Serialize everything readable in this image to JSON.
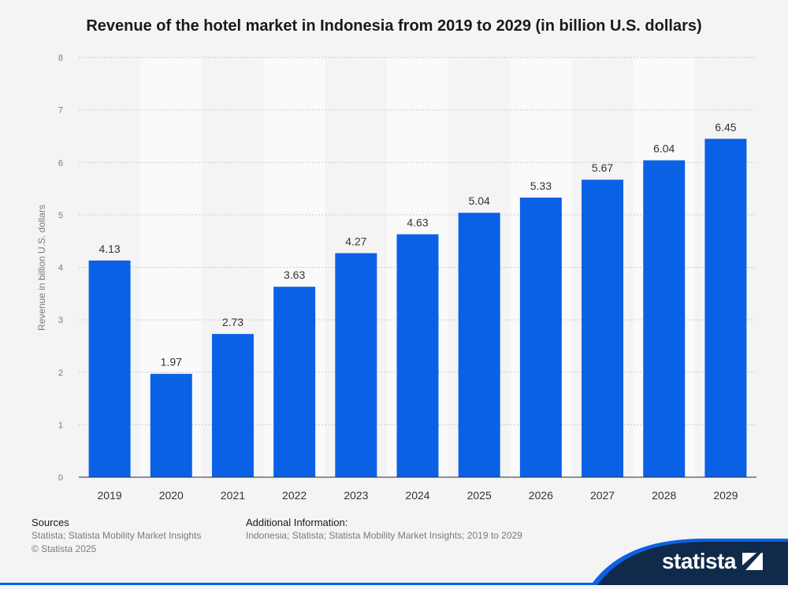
{
  "title": "Revenue of the hotel market in Indonesia from 2019 to 2029 (in billion U.S. dollars)",
  "footer": {
    "sources_heading": "Sources",
    "sources_line1": "Statista; Statista Mobility Market Insights",
    "sources_line2": "© Statista 2025",
    "additional_heading": "Additional Information:",
    "additional_line1": "Indonesia; Statista; Statista Mobility Market Insights; 2019 to 2029"
  },
  "brand": {
    "logo_text": "statista"
  },
  "colors": {
    "bar": "#0b61e6",
    "background": "#f4f4f4",
    "band": "#fafafa",
    "brand_dark": "#0f2a4a"
  },
  "chart_data": {
    "type": "bar",
    "title": "Revenue of the hotel market in Indonesia from 2019 to 2029 (in billion U.S. dollars)",
    "xlabel": "",
    "ylabel": "Revenue in billion U.S. dollars",
    "categories": [
      "2019",
      "2020",
      "2021",
      "2022",
      "2023",
      "2024",
      "2025",
      "2026",
      "2027",
      "2028",
      "2029"
    ],
    "values": [
      4.13,
      1.97,
      2.73,
      3.63,
      4.27,
      4.63,
      5.04,
      5.33,
      5.67,
      6.04,
      6.45
    ],
    "value_labels": [
      "4.13",
      "1.97",
      "2.73",
      "3.63",
      "4.27",
      "4.63",
      "5.04",
      "5.33",
      "5.67",
      "6.04",
      "6.45"
    ],
    "ylim": [
      0,
      8
    ],
    "yticks": [
      "0",
      "1",
      "2",
      "3",
      "4",
      "5",
      "6",
      "7",
      "8"
    ],
    "grid": true,
    "legend": "none"
  }
}
